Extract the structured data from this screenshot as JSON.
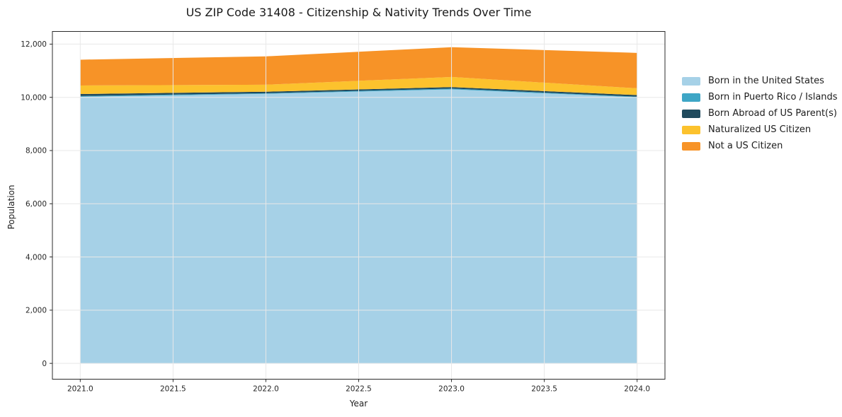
{
  "chart_data": {
    "type": "area",
    "stacked": true,
    "title": "US ZIP Code 31408 - Citizenship & Nativity Trends Over Time",
    "xlabel": "Year",
    "ylabel": "Population",
    "x": [
      2021,
      2022,
      2023,
      2024
    ],
    "series": [
      {
        "name": "Born in the United States",
        "color": "#a6d1e7",
        "values": [
          10020,
          10130,
          10300,
          10000
        ]
      },
      {
        "name": "Born in Puerto Rico / Islands",
        "color": "#3ea6c6",
        "values": [
          30,
          25,
          30,
          25
        ]
      },
      {
        "name": "Born Abroad of US Parent(s)",
        "color": "#204a5d",
        "values": [
          75,
          55,
          55,
          60
        ]
      },
      {
        "name": "Naturalized US Citizen",
        "color": "#fcc22d",
        "values": [
          320,
          265,
          380,
          255
        ]
      },
      {
        "name": "Not a US Citizen",
        "color": "#f79327",
        "values": [
          970,
          1065,
          1120,
          1330
        ]
      }
    ],
    "totals": [
      11415,
      11540,
      11885,
      11670
    ],
    "x_ticks": [
      2021.0,
      2021.5,
      2022.0,
      2022.5,
      2023.0,
      2023.5,
      2024.0
    ],
    "x_tick_labels": [
      "2021.0",
      "2021.5",
      "2022.0",
      "2022.5",
      "2023.0",
      "2023.5",
      "2024.0"
    ],
    "y_ticks": [
      0,
      2000,
      4000,
      6000,
      8000,
      10000,
      12000
    ],
    "y_tick_labels": [
      "0",
      "2,000",
      "4,000",
      "6,000",
      "8,000",
      "10,000",
      "12,000"
    ],
    "xlim": [
      2020.85,
      2024.15
    ],
    "ylim": [
      -594,
      12476
    ],
    "grid": true,
    "grid_color": "#e8e8e8",
    "spine_color": "#2b2b2b",
    "tick_label_color": "#262626",
    "legend_position": "right outside"
  }
}
